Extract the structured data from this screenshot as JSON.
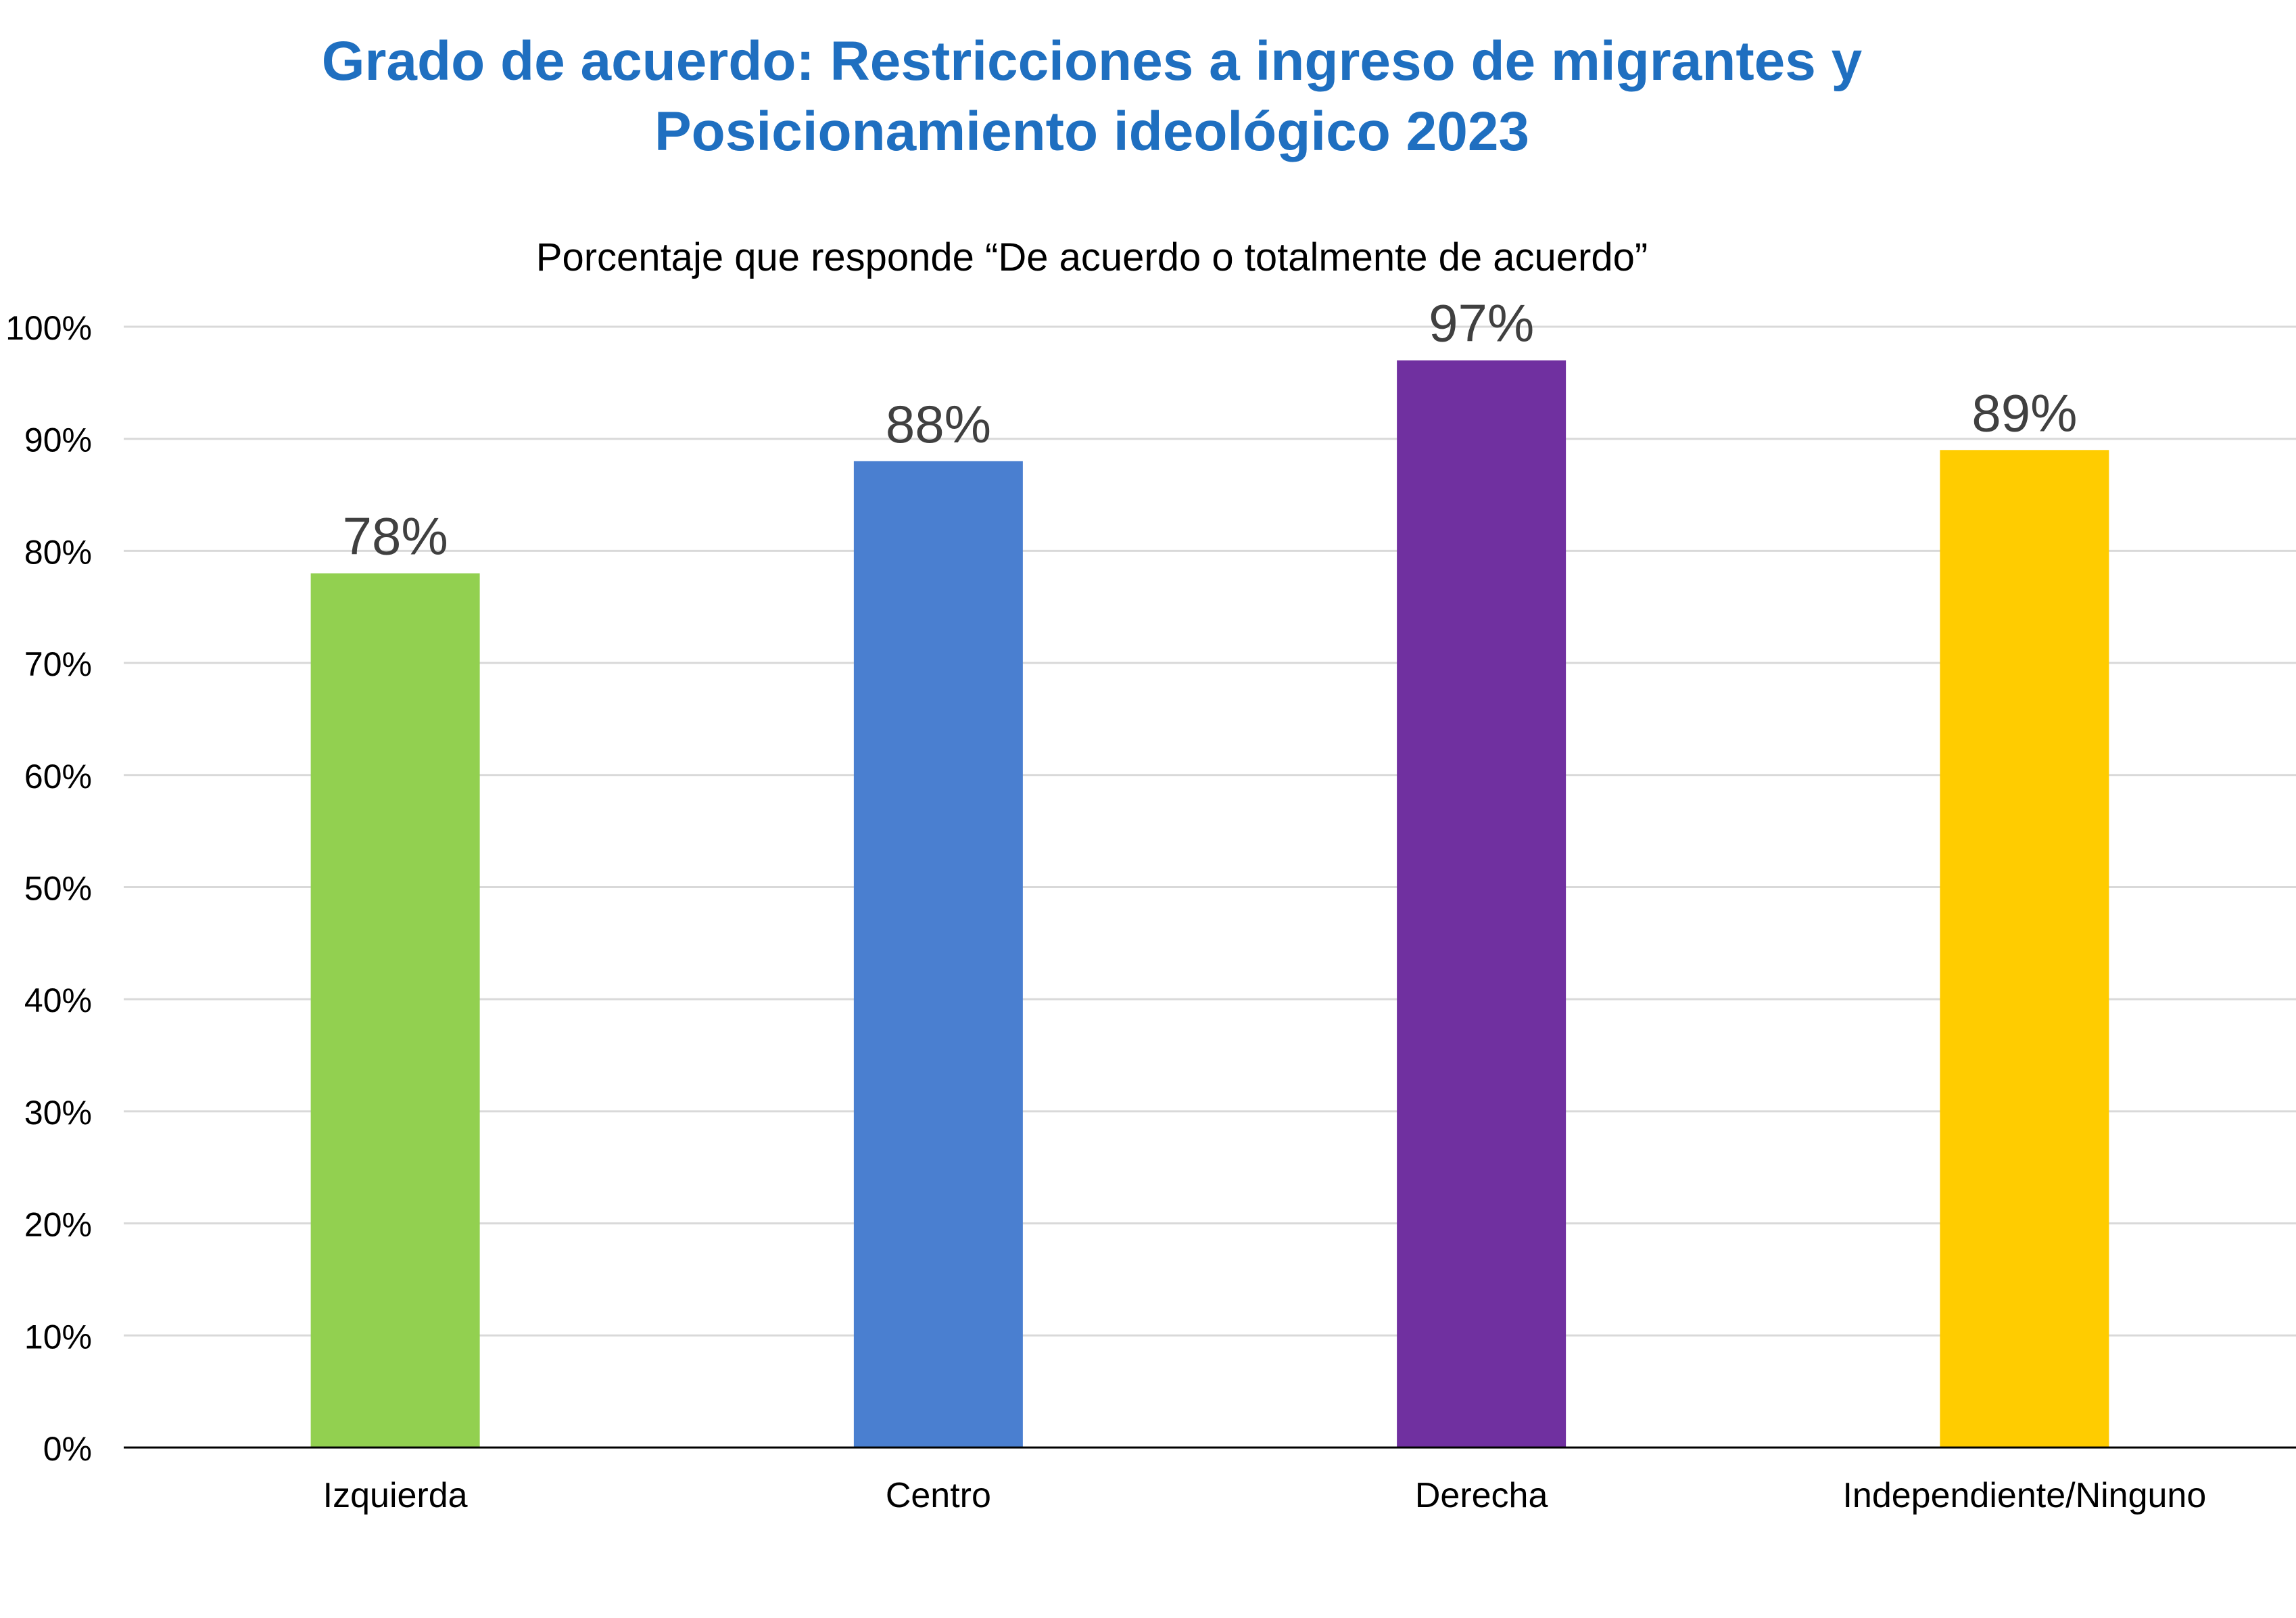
{
  "chart_data": {
    "type": "bar",
    "title_lines": [
      "Grado de acuerdo: Restricciones a ingreso de migrantes y",
      "Posicionamiento ideológico 2023"
    ],
    "subtitle": "Porcentaje que responde “De acuerdo o totalmente de acuerdo”",
    "categories": [
      "Izquierda",
      "Centro",
      "Derecha",
      "Independiente/Ninguno"
    ],
    "values": [
      78,
      88,
      97,
      89
    ],
    "data_labels": [
      "78%",
      "88%",
      "97%",
      "89%"
    ],
    "ylim": [
      0,
      100
    ],
    "ytick_values": [
      0,
      10,
      20,
      30,
      40,
      50,
      60,
      70,
      80,
      90,
      100
    ],
    "ytick_labels": [
      "0%",
      "10%",
      "20%",
      "30%",
      "40%",
      "50%",
      "60%",
      "70%",
      "80%",
      "90%",
      "100%"
    ],
    "grid": true,
    "legend": "none",
    "colors": {
      "title": "#1F6FC0",
      "bars": [
        "#92D050",
        "#4A7FD0",
        "#7030A0",
        "#FFCC00"
      ],
      "grid": "#D9D9D9",
      "axis": "#000000",
      "data_label": "#404040",
      "text": "#000000"
    }
  }
}
